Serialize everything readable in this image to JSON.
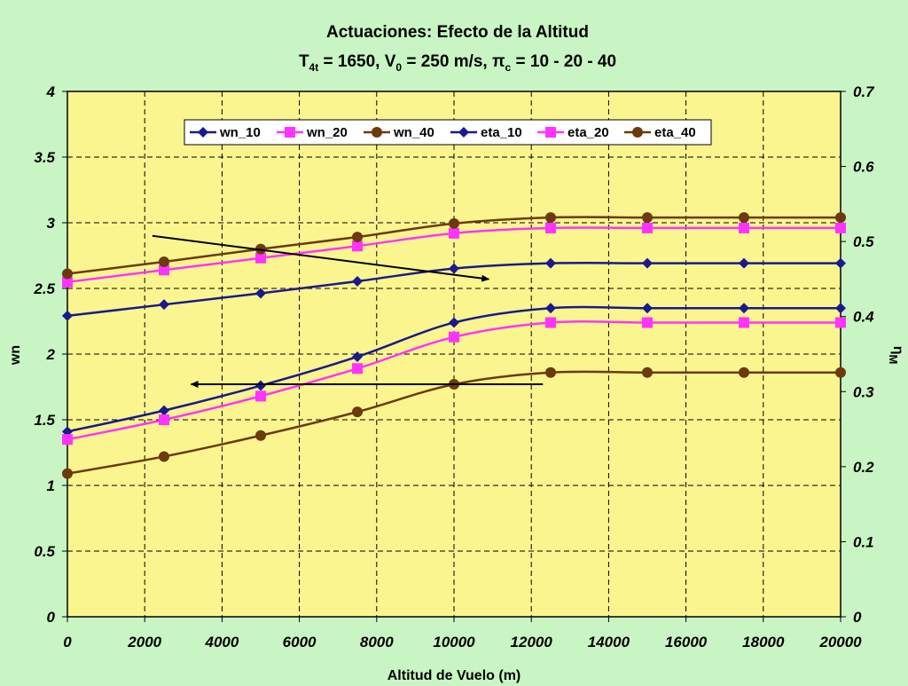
{
  "chart_data": {
    "type": "line",
    "title": "Actuaciones: Efecto de la Altitud",
    "subtitle": {
      "t_main": "T",
      "t_sub": "4t",
      "t_rest": " = 1650, V",
      "v_sub": "0",
      "v_rest": " = 250 m/s, π",
      "pi_sub": "c",
      "pi_rest": " = 10 - 20 - 40"
    },
    "xlabel": "Altitud de Vuelo (m)",
    "ylabel_left": "wn",
    "ylabel_right": "η",
    "ylabel_right_sub": "M",
    "xlim": [
      0,
      20000
    ],
    "ylim_left": [
      0,
      4
    ],
    "ylim_right": [
      0,
      0.7
    ],
    "x_ticks": [
      "0",
      "2000",
      "4000",
      "6000",
      "8000",
      "10000",
      "12000",
      "14000",
      "16000",
      "18000",
      "20000"
    ],
    "y_left_ticks": [
      "0",
      "0.5",
      "1",
      "1.5",
      "2",
      "2.5",
      "3",
      "3.5",
      "4"
    ],
    "y_right_ticks": [
      "0",
      "0.1",
      "0.2",
      "0.3",
      "0.4",
      "0.5",
      "0.6",
      "0.7"
    ],
    "grid": true,
    "legend_position": "top",
    "x": [
      0,
      2500,
      5000,
      7500,
      10000,
      12500,
      15000,
      17500,
      20000
    ],
    "series": [
      {
        "name": "wn_10",
        "axis": "left",
        "color": "#1a1a8c",
        "marker": "diamond",
        "values": [
          1.41,
          1.57,
          1.76,
          1.98,
          2.24,
          2.35,
          2.35,
          2.35,
          2.35
        ]
      },
      {
        "name": "wn_20",
        "axis": "left",
        "color": "#ff33ff",
        "marker": "square",
        "values": [
          1.35,
          1.5,
          1.68,
          1.89,
          2.13,
          2.24,
          2.24,
          2.24,
          2.24
        ]
      },
      {
        "name": "wn_40",
        "axis": "left",
        "color": "#6b3a0e",
        "marker": "circle",
        "values": [
          1.09,
          1.22,
          1.38,
          1.56,
          1.77,
          1.86,
          1.86,
          1.86,
          1.86
        ]
      },
      {
        "name": "eta_10",
        "axis": "right",
        "color": "#1a1a8c",
        "marker": "diamond",
        "values": [
          0.401,
          0.416,
          0.431,
          0.447,
          0.464,
          0.471,
          0.471,
          0.471,
          0.471
        ]
      },
      {
        "name": "eta_20",
        "axis": "right",
        "color": "#ff33ff",
        "marker": "square",
        "values": [
          0.446,
          0.462,
          0.478,
          0.494,
          0.511,
          0.518,
          0.518,
          0.518,
          0.518
        ]
      },
      {
        "name": "eta_40",
        "axis": "right",
        "color": "#6b3a0e",
        "marker": "circle",
        "values": [
          0.457,
          0.473,
          0.49,
          0.506,
          0.524,
          0.532,
          0.532,
          0.532,
          0.532
        ]
      }
    ],
    "annotations": [
      {
        "type": "arrow",
        "from": {
          "x": 2200,
          "y": 2.9
        },
        "to": {
          "x": 10900,
          "y": 2.57
        }
      },
      {
        "type": "arrow",
        "from": {
          "x": 12300,
          "y": 1.77
        },
        "to": {
          "x": 3200,
          "y": 1.77
        }
      }
    ]
  }
}
